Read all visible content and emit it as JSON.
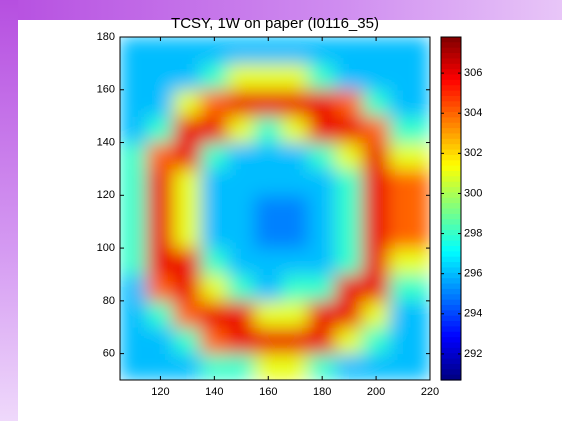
{
  "chart_data": {
    "type": "heatmap",
    "title": "TCSY, 1W on paper (I0116_35)",
    "x": [
      110,
      120,
      130,
      140,
      150,
      160,
      170,
      180,
      190,
      200,
      210
    ],
    "y": [
      55,
      65,
      75,
      85,
      95,
      105,
      115,
      125,
      135,
      145,
      155,
      165,
      175
    ],
    "values": [
      [
        296,
        296,
        296,
        298,
        298,
        301,
        301,
        298,
        296,
        296,
        296
      ],
      [
        296,
        296,
        298,
        304,
        306,
        306,
        306,
        306,
        301,
        298,
        296
      ],
      [
        296,
        298,
        304,
        306,
        306,
        301,
        301,
        306,
        306,
        301,
        296
      ],
      [
        296,
        304,
        306,
        301,
        298,
        296,
        298,
        298,
        306,
        306,
        298
      ],
      [
        298,
        306,
        306,
        298,
        296,
        296,
        296,
        296,
        298,
        306,
        301
      ],
      [
        298,
        306,
        301,
        296,
        296,
        295,
        295,
        296,
        298,
        306,
        304
      ],
      [
        298,
        306,
        301,
        296,
        296,
        295,
        295,
        296,
        298,
        306,
        304
      ],
      [
        298,
        306,
        301,
        296,
        296,
        296,
        296,
        296,
        298,
        306,
        304
      ],
      [
        298,
        304,
        306,
        298,
        296,
        296,
        296,
        298,
        301,
        306,
        301
      ],
      [
        296,
        298,
        306,
        306,
        301,
        298,
        301,
        306,
        306,
        304,
        298
      ],
      [
        296,
        296,
        301,
        304,
        306,
        306,
        306,
        306,
        304,
        298,
        296
      ],
      [
        296,
        296,
        296,
        298,
        301,
        301,
        301,
        298,
        296,
        296,
        296
      ],
      [
        296,
        296,
        296,
        296,
        296,
        296,
        296,
        296,
        296,
        296,
        296
      ]
    ],
    "xlim": [
      105,
      220
    ],
    "xticks": [
      120,
      140,
      160,
      180,
      200,
      220
    ],
    "ylim": [
      50,
      180
    ],
    "yticks": [
      60,
      80,
      100,
      120,
      140,
      160,
      180
    ],
    "clim": [
      290.7,
      307.8
    ],
    "cticks": [
      292,
      294,
      296,
      298,
      300,
      302,
      304,
      306
    ],
    "colormap": "jet"
  }
}
